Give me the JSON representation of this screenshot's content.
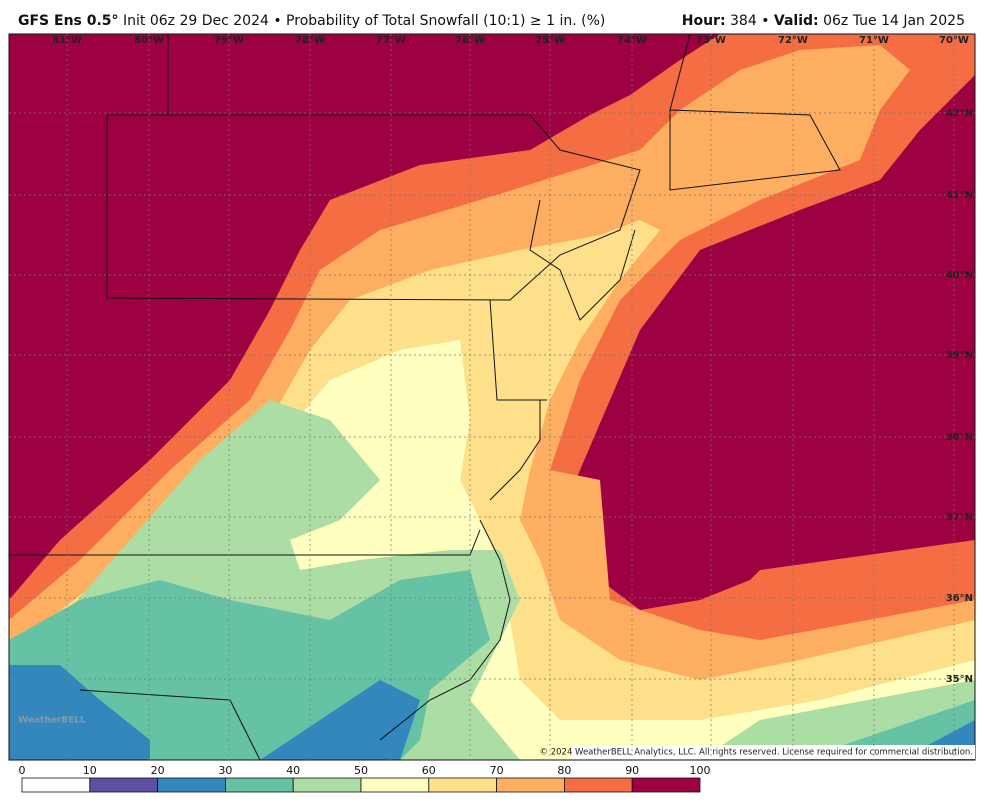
{
  "header": {
    "title_bold": "GFS Ens 0.5°",
    "title": "Init 06z 29 Dec 2024 • Probability of Total Snowfall (10:1) ≥ 1 in. (%)",
    "hour_label": "Hour:",
    "hour": "384",
    "separator": "•",
    "valid_label": "Valid:",
    "valid": "06z Tue 14 Jan 2025"
  },
  "map": {
    "longitudes": [
      "81°W",
      "80°W",
      "79°W",
      "78°W",
      "77°W",
      "76°W",
      "75°W",
      "74°W",
      "73°W",
      "72°W",
      "71°W",
      "70°W"
    ],
    "latitudes": [
      "42°N",
      "41°N",
      "40°N",
      "39°N",
      "38°N",
      "37°N",
      "36°N",
      "35°N"
    ],
    "logo": "WeatherBELL",
    "copyright": "© 2024 WeatherBELL Analytics, LLC. All rights reserved. License required for commercial distribution."
  },
  "colorbar": {
    "ticks": [
      0,
      10,
      20,
      30,
      40,
      50,
      60,
      70,
      80,
      90,
      100
    ],
    "colors": [
      "#ffffff",
      "#5e4fa2",
      "#3288bd",
      "#66c2a5",
      "#abdda4",
      "#ffffbf",
      "#fee08b",
      "#fdae61",
      "#f46d43",
      "#9e0142"
    ]
  }
}
